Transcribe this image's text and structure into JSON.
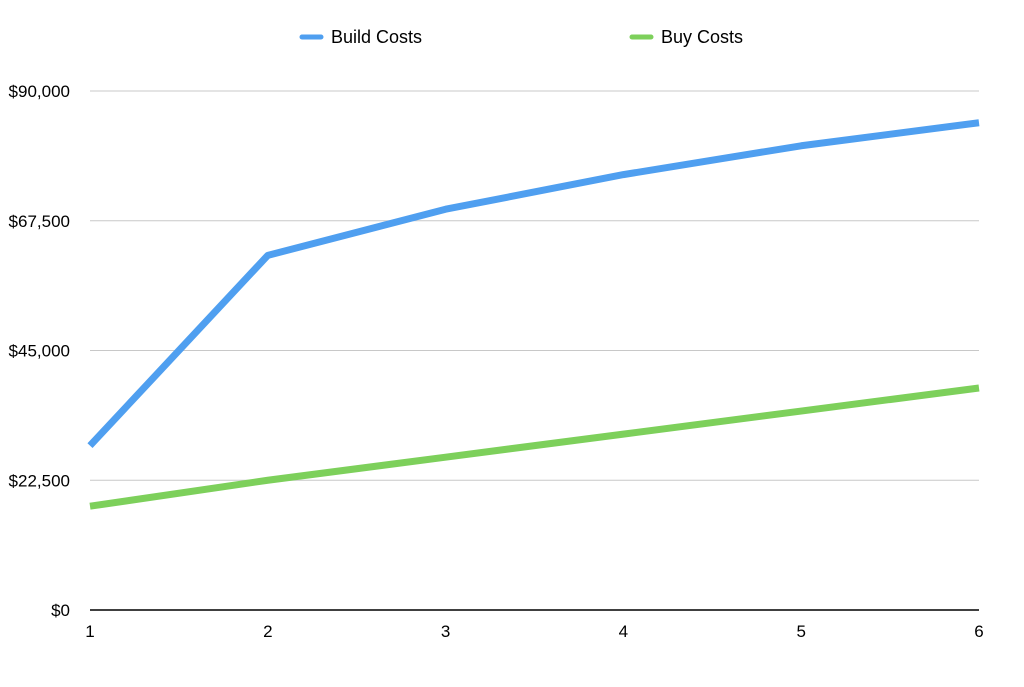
{
  "chart_data": {
    "type": "line",
    "title": "",
    "xlabel": "",
    "ylabel": "",
    "x": [
      1,
      2,
      3,
      4,
      5,
      6
    ],
    "x_tick_labels": [
      "1",
      "2",
      "3",
      "4",
      "5",
      "6"
    ],
    "ylim": [
      0,
      90000
    ],
    "y_ticks": [
      0,
      22500,
      45000,
      67500,
      90000
    ],
    "y_tick_labels": [
      "$0",
      "$22,500",
      "$45,000",
      "$67,500",
      "$90,000"
    ],
    "grid": true,
    "legend_position": "top-center",
    "series": [
      {
        "name": "Build Costs",
        "color": "#4f9ff0",
        "values": [
          28500,
          61500,
          69500,
          75500,
          80500,
          84500
        ]
      },
      {
        "name": "Buy Costs",
        "color": "#7dd05b",
        "values": [
          18000,
          22500,
          26500,
          30500,
          34500,
          38500
        ]
      }
    ]
  }
}
